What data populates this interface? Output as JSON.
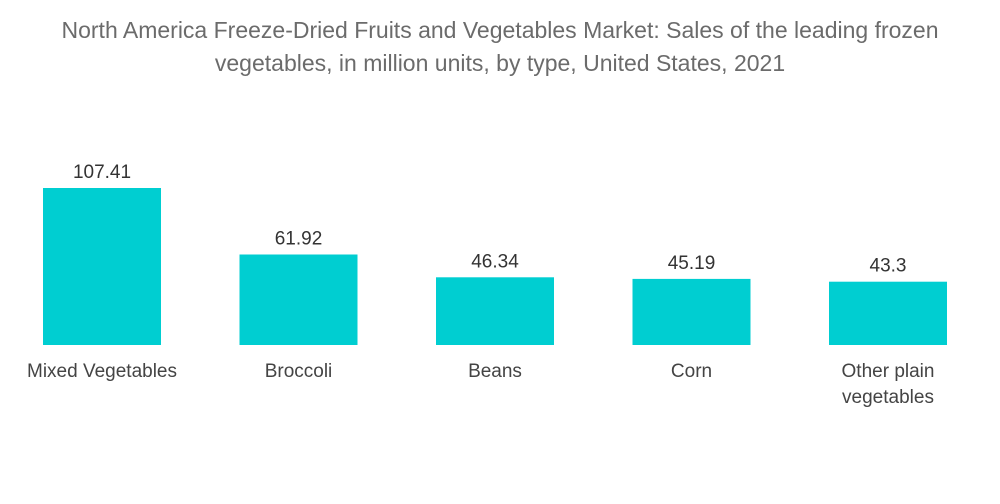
{
  "chart_data": {
    "type": "bar",
    "title_lines": [
      "North America Freeze-Dried Fruits and Vegetables Market: Sales of the leading frozen",
      "vegetables, in million units, by type, United States, 2021"
    ],
    "categories": [
      [
        "Mixed Vegetables"
      ],
      [
        "Broccoli"
      ],
      [
        "Beans"
      ],
      [
        "Corn"
      ],
      [
        "Other plain",
        "vegetables"
      ]
    ],
    "values": [
      107.41,
      61.92,
      46.34,
      45.19,
      43.3
    ],
    "value_labels": [
      "107.41",
      "61.92",
      "46.34",
      "45.19",
      "43.3"
    ],
    "xlabel": "",
    "ylabel": "",
    "ylim": [
      0,
      107.41
    ],
    "grid": false,
    "legend": "none",
    "bar_color": "#00CED1"
  }
}
